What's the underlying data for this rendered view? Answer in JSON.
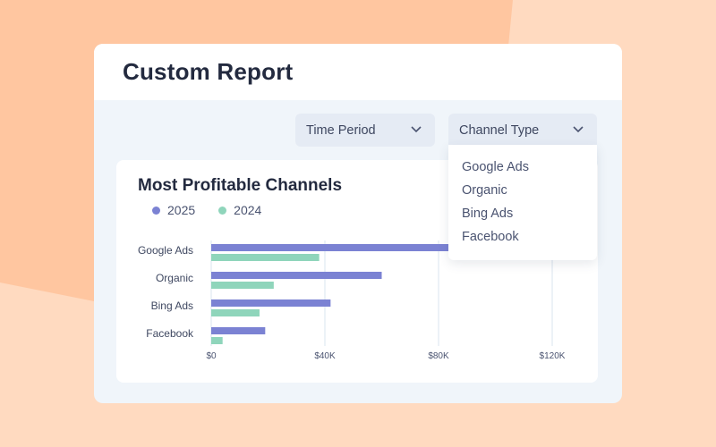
{
  "colors": {
    "bg_light": "#ffdac0",
    "bg_dark": "#ffc6a0",
    "series_2025": "#7b82d3",
    "series_2024": "#8fd5bb",
    "title_text": "#232a3f"
  },
  "report": {
    "title": "Custom Report"
  },
  "filters": {
    "time_period": {
      "label": "Time Period",
      "icon": "chevron-down-icon"
    },
    "channel_type": {
      "label": "Channel Type",
      "icon": "chevron-down-icon",
      "expanded": true,
      "options": [
        "Google Ads",
        "Organic",
        "Bing Ads",
        "Facebook"
      ]
    }
  },
  "chart_data": {
    "type": "bar",
    "orientation": "horizontal",
    "title": "Most Profitable Channels",
    "categories": [
      "Google Ads",
      "Organic",
      "Bing Ads",
      "Facebook"
    ],
    "series": [
      {
        "name": "2025",
        "color": "#7b82d3",
        "values": [
          85000,
          60000,
          42000,
          19000
        ]
      },
      {
        "name": "2024",
        "color": "#8fd5bb",
        "values": [
          38000,
          22000,
          17000,
          4000
        ]
      }
    ],
    "xlabel": "",
    "ylabel": "",
    "xlim": [
      0,
      120000
    ],
    "xticks": [
      0,
      40000,
      80000,
      120000
    ],
    "xtick_labels": [
      "$0",
      "$40K",
      "$80K",
      "$120K"
    ],
    "grid": true,
    "legend_position": "top-left"
  }
}
